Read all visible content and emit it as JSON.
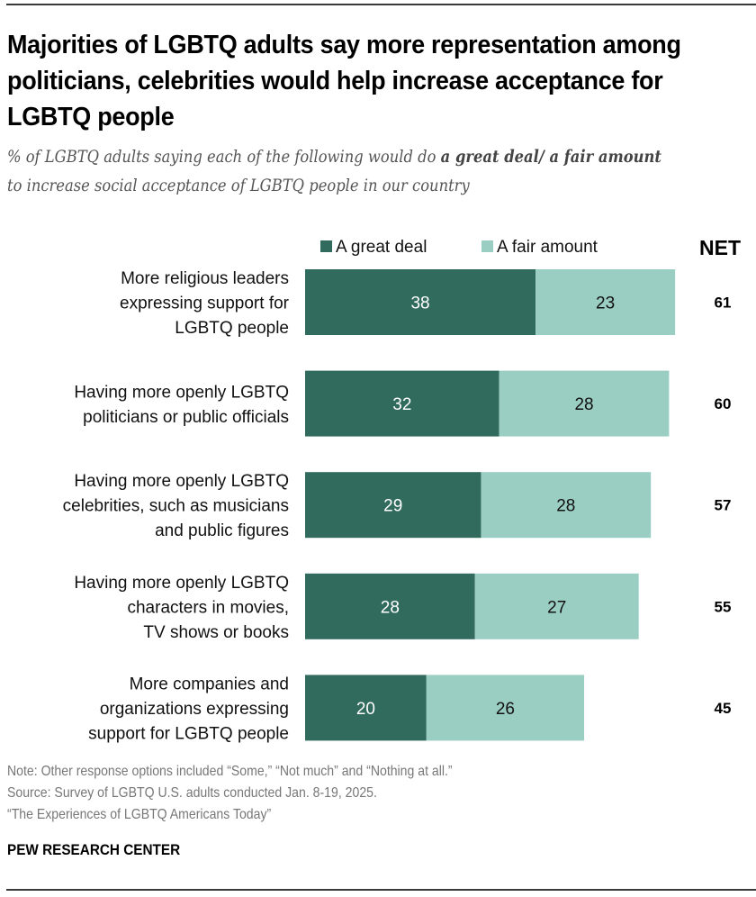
{
  "header": {
    "title": "Majorities of LGBTQ adults say more representation among politicians, celebrities would help increase acceptance for LGBTQ people",
    "subtitle_parts": [
      {
        "text": "% of LGBTQ adults saying each of the following would do ",
        "bold": false
      },
      {
        "text": "a great deal/ a fair amount",
        "bold": true
      },
      {
        "text": " to increase social acceptance of LGBTQ people in our country",
        "bold": false
      }
    ]
  },
  "chart_data": {
    "type": "bar",
    "orientation": "horizontal",
    "stacked": true,
    "title": "Majorities of LGBTQ adults say more representation among politicians, celebrities would help increase acceptance for LGBTQ people",
    "subtitle": "% of LGBTQ adults saying each of the following would do a great deal/ a fair amount to increase social acceptance of LGBTQ people in our country",
    "xlabel": "",
    "ylabel": "",
    "xlim": [
      0,
      100
    ],
    "grid": false,
    "legend_position": "top",
    "categories": [
      [
        "More religious leaders",
        "expressing support for",
        "LGBTQ people"
      ],
      [
        "Having more openly LGBTQ",
        "politicians or public officials"
      ],
      [
        "Having more openly LGBTQ",
        "celebrities, such as musicians",
        "and public figures"
      ],
      [
        "Having more openly LGBTQ",
        "characters in movies,",
        "TV shows or books"
      ],
      [
        "More companies and",
        "organizations expressing",
        "support for LGBTQ people"
      ]
    ],
    "series": [
      {
        "name": "A great deal",
        "color": "#316b5d",
        "label_color": "#ffffff",
        "values": [
          38,
          32,
          29,
          28,
          20
        ]
      },
      {
        "name": "A fair amount",
        "color": "#9bcec2",
        "label_color": "#111111",
        "values": [
          23,
          28,
          28,
          27,
          26
        ]
      }
    ],
    "net_header": "NET",
    "net": [
      61,
      60,
      57,
      55,
      45
    ]
  },
  "footer": {
    "note": "Note: Other response options included “Some,” “Not much” and “Nothing at all.”",
    "source": "Source: Survey of LGBTQ U.S. adults conducted Jan. 8-19, 2025.",
    "report": "“The Experiences of LGBTQ Americans Today”",
    "brand": "PEW RESEARCH CENTER"
  }
}
